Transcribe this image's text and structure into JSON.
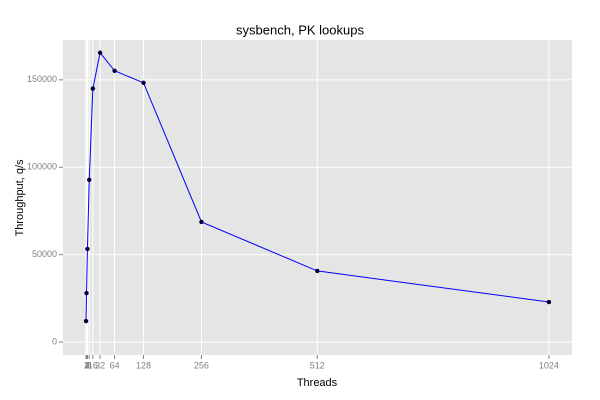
{
  "chart_data": {
    "type": "line",
    "title": "sysbench, PK lookups",
    "x_label": "Threads",
    "y_label": "Throughput, q/s",
    "x": [
      1,
      2,
      4,
      8,
      16,
      32,
      64,
      128,
      256,
      512,
      1024
    ],
    "series": [
      {
        "name": "Throughput",
        "color": "#0000ff",
        "marker_color": "#000033",
        "values": [
          12000,
          28000,
          53300,
          92800,
          145000,
          165500,
          155200,
          148300,
          68700,
          40700,
          22900
        ]
      }
    ],
    "xlim": [
      -50,
      1075
    ],
    "ylim": [
      -7400,
      172800
    ],
    "xticks": [
      1,
      2,
      4,
      8,
      16,
      32,
      64,
      128,
      256,
      512,
      1024
    ],
    "yticks": [
      0,
      50000,
      100000,
      150000
    ],
    "grid": true,
    "legend": false
  }
}
